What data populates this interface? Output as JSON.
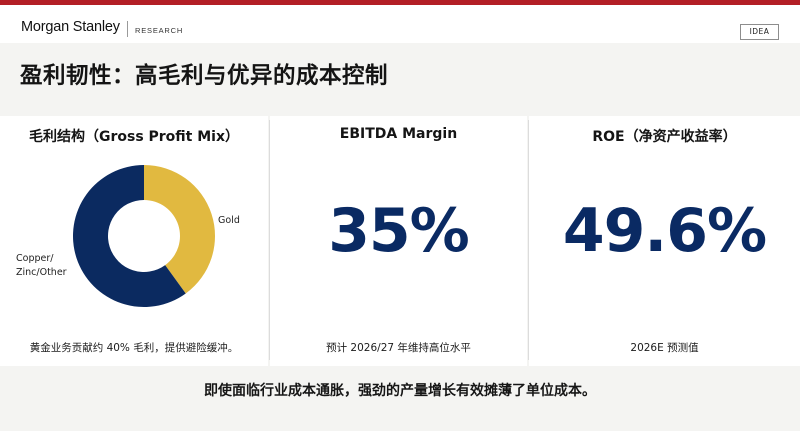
{
  "header": {
    "brand": "Morgan Stanley",
    "section": "RESEARCH",
    "badge": "IDEA"
  },
  "title": "盈利韧性：高毛利与优异的成本控制",
  "panels": {
    "gross_profit": {
      "heading": "毛利结构（Gross Profit Mix）",
      "label_gold": "Gold",
      "label_other_line1": "Copper/",
      "label_other_line2": "Zinc/Other",
      "footnote": "黄金业务贡献约 40% 毛利，提供避险缓冲。",
      "colors": {
        "gold": "#e1b940",
        "other": "#0b2a60"
      }
    },
    "ebitda": {
      "heading": "EBITDA Margin",
      "value": "35%",
      "footnote": "预计 2026/27 年维持高位水平"
    },
    "roe": {
      "heading": "ROE（净资产收益率）",
      "value": "49.6%",
      "footnote": "2026E 预测值"
    }
  },
  "bottom_text": "即使面临行业成本通胀，强劲的产量增长有效摊薄了单位成本。",
  "chart_data": {
    "type": "pie",
    "title": "毛利结构（Gross Profit Mix）",
    "categories": [
      "Gold",
      "Copper/Zinc/Other"
    ],
    "values": [
      40,
      60
    ],
    "colors": [
      "#e1b940",
      "#0b2a60"
    ]
  }
}
